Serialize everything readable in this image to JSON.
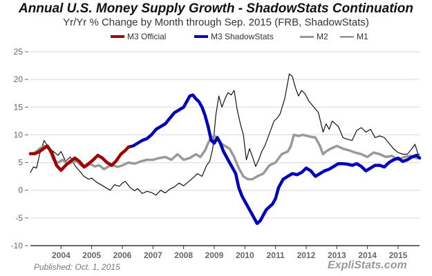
{
  "chart_data": {
    "type": "line",
    "title": "Annual U.S. Money Supply Growth - ShadowStats Continuation",
    "subtitle": "Yr/Yr % Change by Month through Sep. 2015  (FRB, ShadowStats)",
    "xlabel": "",
    "ylabel": "",
    "xlim": [
      2003.0,
      2015.7
    ],
    "ylim": [
      -10,
      25
    ],
    "grid": true,
    "legend_position": "top",
    "y_ticks": [
      "25",
      "20",
      "15",
      "10",
      "5",
      "0",
      "-5",
      "-10"
    ],
    "y_tick_values": [
      25,
      20,
      15,
      10,
      5,
      0,
      -5,
      -10
    ],
    "x_ticks": [
      "2004",
      "2005",
      "2006",
      "2007",
      "2008",
      "2009",
      "2010",
      "2011",
      "2012",
      "2013",
      "2014",
      "2015"
    ],
    "x_tick_values": [
      2004,
      2005,
      2006,
      2007,
      2008,
      2009,
      2010,
      2011,
      2012,
      2013,
      2014,
      2015
    ],
    "series": [
      {
        "name": "M1",
        "color": "#111111",
        "x": [
          2003.0,
          2003.1,
          2003.2,
          2003.3,
          2003.45,
          2003.6,
          2003.75,
          2003.9,
          2004.0,
          2004.15,
          2004.3,
          2004.45,
          2004.6,
          2004.75,
          2004.9,
          2005.0,
          2005.15,
          2005.3,
          2005.45,
          2005.6,
          2005.75,
          2005.9,
          2006.0,
          2006.1,
          2006.25,
          2006.4,
          2006.5,
          2006.65,
          2006.8,
          2006.95,
          2007.1,
          2007.25,
          2007.4,
          2007.55,
          2007.7,
          2007.85,
          2008.0,
          2008.15,
          2008.3,
          2008.45,
          2008.6,
          2008.75,
          2008.85,
          2008.95,
          2009.05,
          2009.15,
          2009.25,
          2009.35,
          2009.45,
          2009.55,
          2009.65,
          2009.75,
          2009.85,
          2009.95,
          2010.05,
          2010.15,
          2010.25,
          2010.35,
          2010.45,
          2010.55,
          2010.65,
          2010.75,
          2010.85,
          2010.95,
          2011.05,
          2011.15,
          2011.3,
          2011.45,
          2011.55,
          2011.65,
          2011.75,
          2011.85,
          2011.95,
          2012.1,
          2012.25,
          2012.4,
          2012.55,
          2012.65,
          2012.75,
          2012.85,
          2012.95,
          2013.05,
          2013.2,
          2013.35,
          2013.5,
          2013.65,
          2013.8,
          2013.95,
          2014.1,
          2014.25,
          2014.4,
          2014.55,
          2014.7,
          2014.85,
          2015.0,
          2015.15,
          2015.3,
          2015.45,
          2015.55,
          2015.65,
          2015.7
        ],
        "values": [
          3.2,
          4.2,
          4.0,
          6.5,
          9.0,
          7.6,
          7.0,
          6.3,
          7.0,
          5.2,
          6.0,
          4.5,
          3.5,
          2.5,
          2.0,
          2.2,
          1.5,
          1.0,
          0.5,
          0.0,
          1.0,
          0.7,
          1.3,
          1.6,
          0.5,
          -0.1,
          0.3,
          -0.6,
          -0.2,
          -0.4,
          -0.9,
          0.0,
          -0.5,
          0.2,
          0.6,
          1.3,
          0.8,
          1.5,
          2.2,
          3.0,
          2.5,
          4.5,
          5.2,
          7.5,
          13.5,
          17.0,
          15.0,
          16.5,
          17.6,
          17.2,
          18.0,
          14.5,
          12.0,
          10.0,
          5.5,
          7.5,
          6.0,
          4.3,
          5.5,
          7.0,
          8.0,
          9.5,
          11.0,
          12.5,
          13.0,
          13.8,
          16.5,
          21.0,
          20.5,
          18.5,
          17.0,
          18.0,
          17.5,
          16.0,
          15.0,
          14.0,
          10.5,
          12.0,
          11.0,
          12.5,
          12.0,
          11.5,
          9.5,
          9.2,
          9.0,
          10.8,
          11.3,
          10.5,
          11.0,
          9.5,
          9.8,
          9.5,
          8.5,
          7.5,
          6.8,
          6.5,
          6.5,
          7.5,
          8.3,
          6.5,
          6.5
        ]
      },
      {
        "name": "M2",
        "color": "#999999",
        "x": [
          2003.0,
          2003.15,
          2003.3,
          2003.45,
          2003.6,
          2003.75,
          2003.9,
          2004.05,
          2004.2,
          2004.35,
          2004.5,
          2004.65,
          2004.8,
          2004.95,
          2005.1,
          2005.25,
          2005.4,
          2005.55,
          2005.7,
          2005.85,
          2006.0,
          2006.2,
          2006.4,
          2006.6,
          2006.8,
          2007.0,
          2007.2,
          2007.4,
          2007.6,
          2007.8,
          2008.0,
          2008.2,
          2008.4,
          2008.55,
          2008.7,
          2008.8,
          2008.9,
          2009.0,
          2009.1,
          2009.2,
          2009.35,
          2009.5,
          2009.65,
          2009.8,
          2009.95,
          2010.1,
          2010.25,
          2010.4,
          2010.6,
          2010.8,
          2011.0,
          2011.2,
          2011.4,
          2011.5,
          2011.6,
          2011.75,
          2011.9,
          2012.1,
          2012.3,
          2012.45,
          2012.55,
          2012.65,
          2012.8,
          2013.0,
          2013.2,
          2013.4,
          2013.6,
          2013.8,
          2014.0,
          2014.2,
          2014.4,
          2014.6,
          2014.8,
          2015.0,
          2015.2,
          2015.4,
          2015.6,
          2015.7
        ],
        "values": [
          6.5,
          6.8,
          7.5,
          8.0,
          7.5,
          5.5,
          5.0,
          5.5,
          4.8,
          5.0,
          5.3,
          4.5,
          4.2,
          4.8,
          4.3,
          4.5,
          3.8,
          4.3,
          4.5,
          4.2,
          4.5,
          5.0,
          4.8,
          5.2,
          5.5,
          5.5,
          5.8,
          6.0,
          5.5,
          6.5,
          5.5,
          5.8,
          6.5,
          6.0,
          7.2,
          8.5,
          9.5,
          9.8,
          9.5,
          8.5,
          8.0,
          7.5,
          6.0,
          4.0,
          2.5,
          2.0,
          2.0,
          2.5,
          3.0,
          4.5,
          5.0,
          6.5,
          7.0,
          8.0,
          10.0,
          9.8,
          10.0,
          9.7,
          9.5,
          8.0,
          6.5,
          7.0,
          7.5,
          8.0,
          7.5,
          7.2,
          6.8,
          6.5,
          6.0,
          6.8,
          6.5,
          6.0,
          6.2,
          5.5,
          6.0,
          6.2,
          5.8,
          6.0
        ]
      },
      {
        "name": "M3 ShadowStats",
        "color": "#0000bb",
        "x": [
          2006.2,
          2006.35,
          2006.5,
          2006.65,
          2006.8,
          2006.95,
          2007.1,
          2007.25,
          2007.4,
          2007.55,
          2007.7,
          2007.85,
          2008.0,
          2008.1,
          2008.2,
          2008.3,
          2008.4,
          2008.5,
          2008.6,
          2008.7,
          2008.8,
          2008.9,
          2009.0,
          2009.1,
          2009.2,
          2009.3,
          2009.4,
          2009.5,
          2009.6,
          2009.7,
          2009.8,
          2009.9,
          2010.0,
          2010.1,
          2010.2,
          2010.3,
          2010.4,
          2010.5,
          2010.6,
          2010.7,
          2010.8,
          2010.9,
          2011.0,
          2011.1,
          2011.25,
          2011.4,
          2011.55,
          2011.7,
          2011.85,
          2012.0,
          2012.15,
          2012.3,
          2012.45,
          2012.6,
          2012.75,
          2012.9,
          2013.05,
          2013.2,
          2013.35,
          2013.5,
          2013.65,
          2013.8,
          2013.95,
          2014.1,
          2014.25,
          2014.4,
          2014.55,
          2014.7,
          2014.85,
          2015.0,
          2015.15,
          2015.3,
          2015.45,
          2015.6,
          2015.7
        ],
        "values": [
          7.8,
          8.0,
          8.5,
          9.0,
          9.3,
          10.0,
          11.0,
          11.5,
          12.0,
          13.0,
          14.0,
          14.5,
          15.0,
          16.0,
          17.0,
          17.2,
          16.5,
          16.0,
          15.0,
          13.5,
          11.5,
          9.0,
          8.5,
          9.5,
          8.5,
          7.0,
          6.0,
          5.0,
          4.0,
          3.0,
          0.5,
          -1.0,
          -2.0,
          -3.0,
          -4.0,
          -5.0,
          -6.0,
          -5.5,
          -4.5,
          -3.5,
          -3.0,
          -2.5,
          -1.5,
          0.5,
          2.0,
          2.5,
          3.0,
          2.8,
          3.2,
          4.0,
          3.5,
          2.5,
          3.0,
          3.5,
          3.8,
          4.3,
          4.8,
          4.8,
          4.7,
          4.5,
          4.8,
          4.3,
          3.5,
          4.0,
          4.5,
          4.5,
          4.2,
          5.0,
          5.5,
          5.8,
          5.2,
          5.5,
          6.0,
          6.3,
          5.8
        ]
      },
      {
        "name": "M3 Official",
        "color": "#a00000",
        "x": [
          2003.0,
          2003.15,
          2003.3,
          2003.45,
          2003.55,
          2003.7,
          2003.85,
          2004.0,
          2004.15,
          2004.3,
          2004.45,
          2004.6,
          2004.75,
          2004.9,
          2005.05,
          2005.2,
          2005.35,
          2005.5,
          2005.65,
          2005.8,
          2005.95,
          2006.1,
          2006.2
        ],
        "values": [
          6.6,
          6.6,
          7.0,
          7.6,
          8.0,
          6.8,
          4.5,
          3.6,
          4.5,
          5.2,
          5.8,
          5.2,
          4.2,
          4.8,
          5.5,
          6.3,
          5.8,
          5.0,
          4.5,
          5.3,
          6.5,
          7.2,
          7.8
        ]
      }
    ]
  },
  "header": {
    "title": "Annual U.S. Money Supply Growth - ShadowStats Continuation",
    "subtitle": "Yr/Yr % Change by Month through Sep. 2015  (FRB, ShadowStats)"
  },
  "legend": [
    {
      "label": "M3 Official",
      "color": "#a00000"
    },
    {
      "label": "M3 ShadowStats",
      "color": "#0000bb"
    },
    {
      "label": "M2",
      "color": "#999999"
    },
    {
      "label": "M1",
      "color": "#111111"
    }
  ],
  "footer": {
    "published": "Published: Oct. 1, 2015",
    "brand": "ExpliStats.com"
  }
}
